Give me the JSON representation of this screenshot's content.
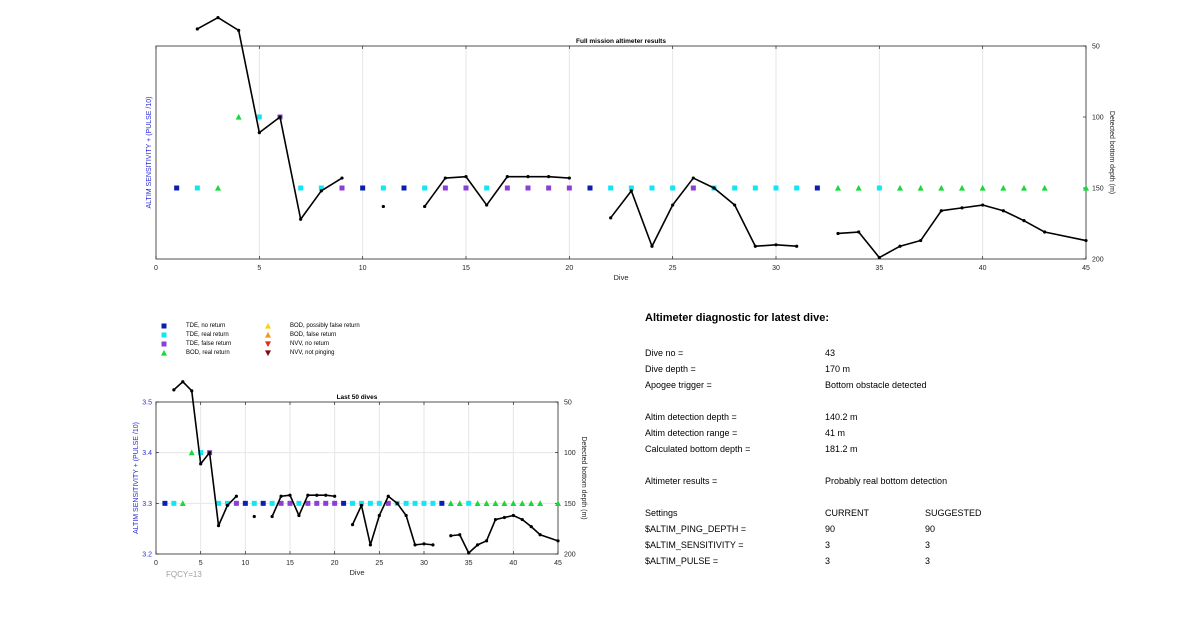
{
  "chart_data": [
    {
      "type": "scatter",
      "title": "Full mission altimeter results",
      "xlabel": "Dive",
      "ylabel_left": "ALTIM SENSITIVITY + (PULSE /10)",
      "ylabel_right": "Detected bottom depth (m)",
      "xlim": [
        0,
        45
      ],
      "xticks": [
        0,
        5,
        10,
        15,
        20,
        25,
        30,
        35,
        40,
        45
      ],
      "ylim_right": [
        200,
        50
      ],
      "yticks_right": [
        50,
        100,
        150,
        200
      ],
      "left_axis_ticks": [],
      "grid": true,
      "bottom_depth_segments": [
        [
          [
            2,
            38
          ],
          [
            3,
            30
          ],
          [
            4,
            39
          ],
          [
            5,
            111
          ],
          [
            6,
            100
          ],
          [
            7,
            172
          ],
          [
            8,
            152
          ],
          [
            9,
            143
          ]
        ],
        [
          [
            11,
            163
          ]
        ],
        [
          [
            13,
            163
          ],
          [
            14,
            143
          ],
          [
            15,
            142
          ],
          [
            16,
            162
          ],
          [
            17,
            142
          ],
          [
            18,
            142
          ],
          [
            19,
            142
          ],
          [
            20,
            143
          ]
        ],
        [
          [
            22,
            171
          ],
          [
            23,
            152
          ],
          [
            24,
            191
          ],
          [
            25,
            162
          ],
          [
            26,
            143
          ],
          [
            27,
            150
          ],
          [
            28,
            162
          ],
          [
            29,
            191
          ],
          [
            30,
            190
          ],
          [
            31,
            191
          ]
        ],
        [
          [
            33,
            182
          ],
          [
            34,
            181
          ],
          [
            35,
            199
          ],
          [
            36,
            191
          ],
          [
            37,
            187
          ],
          [
            38,
            166
          ],
          [
            39,
            164
          ],
          [
            40,
            162
          ],
          [
            41,
            166
          ],
          [
            42,
            173
          ],
          [
            43,
            181
          ],
          [
            45,
            187
          ]
        ]
      ],
      "markers": [
        {
          "dive": 1,
          "type": "TDE, no return"
        },
        {
          "dive": 2,
          "type": "TDE, real return"
        },
        {
          "dive": 3,
          "type": "BOD, real return"
        },
        {
          "dive": 4,
          "type": "BOD, real return",
          "depth": 100
        },
        {
          "dive": 5,
          "type": "TDE, real return",
          "depth": 100
        },
        {
          "dive": 6,
          "type": "TDE, false return",
          "depth": 100
        },
        {
          "dive": 7,
          "type": "TDE, real return"
        },
        {
          "dive": 8,
          "type": "TDE, real return"
        },
        {
          "dive": 9,
          "type": "TDE, false return"
        },
        {
          "dive": 10,
          "type": "TDE, no return"
        },
        {
          "dive": 11,
          "type": "TDE, real return"
        },
        {
          "dive": 12,
          "type": "TDE, no return"
        },
        {
          "dive": 13,
          "type": "TDE, real return"
        },
        {
          "dive": 14,
          "type": "TDE, false return"
        },
        {
          "dive": 15,
          "type": "TDE, false return"
        },
        {
          "dive": 16,
          "type": "TDE, real return"
        },
        {
          "dive": 17,
          "type": "TDE, false return"
        },
        {
          "dive": 18,
          "type": "TDE, false return"
        },
        {
          "dive": 19,
          "type": "TDE, false return"
        },
        {
          "dive": 20,
          "type": "TDE, false return"
        },
        {
          "dive": 21,
          "type": "TDE, no return"
        },
        {
          "dive": 22,
          "type": "TDE, real return"
        },
        {
          "dive": 23,
          "type": "TDE, real return"
        },
        {
          "dive": 24,
          "type": "TDE, real return"
        },
        {
          "dive": 25,
          "type": "TDE, real return"
        },
        {
          "dive": 26,
          "type": "TDE, false return"
        },
        {
          "dive": 27,
          "type": "TDE, real return"
        },
        {
          "dive": 28,
          "type": "TDE, real return"
        },
        {
          "dive": 29,
          "type": "TDE, real return"
        },
        {
          "dive": 30,
          "type": "TDE, real return"
        },
        {
          "dive": 31,
          "type": "TDE, real return"
        },
        {
          "dive": 32,
          "type": "TDE, no return"
        },
        {
          "dive": 33,
          "type": "BOD, real return"
        },
        {
          "dive": 34,
          "type": "BOD, real return"
        },
        {
          "dive": 35,
          "type": "TDE, real return"
        },
        {
          "dive": 36,
          "type": "BOD, real return"
        },
        {
          "dive": 37,
          "type": "BOD, real return"
        },
        {
          "dive": 38,
          "type": "BOD, real return"
        },
        {
          "dive": 39,
          "type": "BOD, real return"
        },
        {
          "dive": 40,
          "type": "BOD, real return"
        },
        {
          "dive": 41,
          "type": "BOD, real return"
        },
        {
          "dive": 42,
          "type": "BOD, real return"
        },
        {
          "dive": 43,
          "type": "BOD, real return"
        },
        {
          "dive": 45,
          "type": "BOD, real return"
        }
      ]
    },
    {
      "type": "scatter",
      "title": "Last 50 dives",
      "xlabel": "Dive",
      "ylabel_left": "ALTIM SENSITIVITY + (PULSE /10)",
      "ylabel_right": "Detected bottom depth (m)",
      "xlim": [
        0,
        45
      ],
      "xticks": [
        0,
        5,
        10,
        15,
        20,
        25,
        30,
        35,
        40,
        45
      ],
      "ylim_left": [
        3.2,
        3.5
      ],
      "yticks_left": [
        "3.2",
        "3.3",
        "3.4",
        "3.5"
      ],
      "ylim_right": [
        200,
        50
      ],
      "yticks_right": [
        50,
        100,
        150,
        200
      ],
      "grid": true,
      "annotation": "FQCY=13",
      "bottom_depth_segments": "same as full mission",
      "markers": "same as full mission"
    }
  ],
  "legend": [
    {
      "label": "TDE, no return",
      "color": "#0a1fb0",
      "shape": "square"
    },
    {
      "label": "TDE, real return",
      "color": "#12e6f2",
      "shape": "square"
    },
    {
      "label": "TDE, false return",
      "color": "#8b3fd6",
      "shape": "square"
    },
    {
      "label": "BOD, real return",
      "color": "#19d83a",
      "shape": "triangle-up"
    },
    {
      "label": "BOD, possibly false return",
      "color": "#f5d21a",
      "shape": "triangle-up"
    },
    {
      "label": "BOD, false return",
      "color": "#f09a1a",
      "shape": "triangle-up"
    },
    {
      "label": "NVV, no return",
      "color": "#e0301a",
      "shape": "triangle-down"
    },
    {
      "label": "NVV, not pinging",
      "color": "#7a0e0e",
      "shape": "triangle-down"
    }
  ],
  "diagnostic": {
    "title": "Altimeter diagnostic for latest dive:",
    "dive_no_label": "Dive no =",
    "dive_no_value": "43",
    "dive_depth_label": "Dive depth =",
    "dive_depth_value": "170 m",
    "apogee_label": "Apogee trigger =",
    "apogee_value": "Bottom obstacle detected",
    "detection_depth_label": "Altim detection depth =",
    "detection_depth_value": "140.2 m",
    "detection_range_label": "Altim detection range =",
    "detection_range_value": "41 m",
    "bottom_depth_label": "Calculated bottom depth =",
    "bottom_depth_value": "181.2 m",
    "results_label": "Altimeter results =",
    "results_value": "Probably real bottom detection",
    "settings_label": "Settings",
    "current_header": "CURRENT",
    "suggested_header": "SUGGESTED",
    "ping_label": "$ALTIM_PING_DEPTH =",
    "ping_current": "90",
    "ping_suggested": "90",
    "sens_label": "$ALTIM_SENSITIVITY =",
    "sens_current": "3",
    "sens_suggested": "3",
    "pulse_label": "$ALTIM_PULSE =",
    "pulse_current": "3",
    "pulse_suggested": "3"
  }
}
